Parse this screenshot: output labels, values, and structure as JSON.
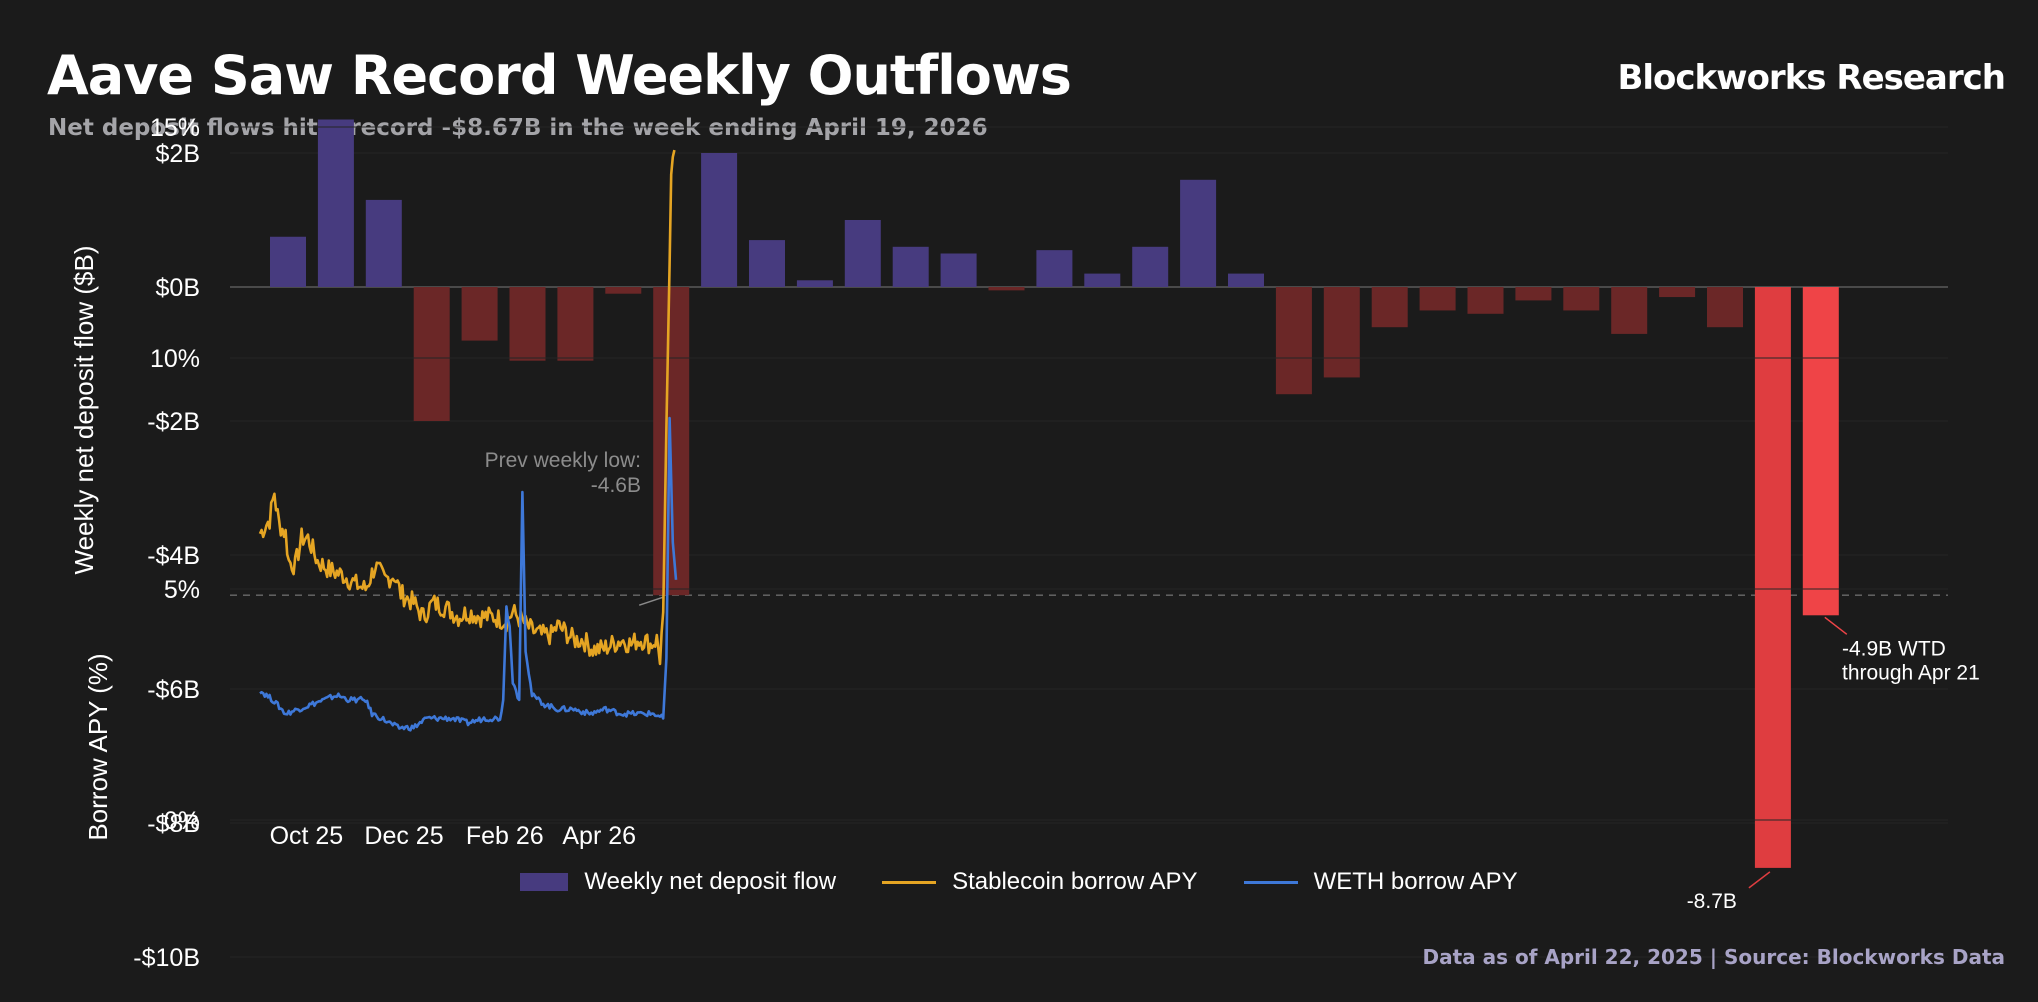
{
  "header": {
    "title": "Aave Saw Record Weekly Outflows",
    "subtitle": "Net deposit flows hit a record -$8.67B in the week ending April 19, 2026",
    "brand": "Blockworks Research"
  },
  "footer": {
    "source": "Data as of April 22, 2025 | Source: Blockworks Data"
  },
  "colors": {
    "background": "#1b1b1b",
    "positive_bar": "#473b7f",
    "negative_bar": "#6b2727",
    "record_bar": "#df3d40",
    "wtd_bar": "#ef4447",
    "stablecoin": "#e5a523",
    "weth": "#3e78d8"
  },
  "chart_data": [
    {
      "type": "bar",
      "ylabel": "Weekly net deposit flow ($B)",
      "ylim": [
        -10,
        2.5
      ],
      "yticks": [
        2,
        0,
        -2,
        -4,
        -6,
        -8,
        -10
      ],
      "ytick_labels": [
        "$2B",
        "$0B",
        "-$2B",
        "-$4B",
        "-$6B",
        "-$8B",
        "-$10B"
      ],
      "grid": true,
      "series": [
        {
          "name": "Weekly net deposit flow",
          "values": [
            0.75,
            2.5,
            1.3,
            -2.0,
            -0.8,
            -1.1,
            -1.1,
            -0.1,
            -4.6,
            2.0,
            0.7,
            0.1,
            1.0,
            0.6,
            0.5,
            -0.05,
            0.55,
            0.2,
            0.6,
            1.6,
            0.2,
            -1.6,
            -1.35,
            -0.6,
            -0.35,
            -0.4,
            -0.2,
            -0.35,
            -0.7,
            -0.15,
            -0.6,
            -8.67,
            -4.9
          ]
        }
      ],
      "reference_line": {
        "value": -4.6
      },
      "annotations": [
        {
          "text_lines": [
            "Prev weekly low:",
            "-4.6B"
          ],
          "bar_index": 8
        },
        {
          "text_lines": [
            "-8.7B"
          ],
          "bar_index": 31
        },
        {
          "text_lines": [
            "-4.9B WTD",
            "through Apr 21"
          ],
          "bar_index": 32
        }
      ]
    },
    {
      "type": "line",
      "ylabel": "Borrow APY (%)",
      "ylim": [
        0,
        16
      ],
      "yticks": [
        0,
        5,
        10,
        15
      ],
      "ytick_labels": [
        "0%",
        "5%",
        "10%",
        "15%"
      ],
      "x_range": [
        "2025-09-26",
        "2026-04-22"
      ],
      "xticks": [
        "2025-10-25",
        "2025-12-25",
        "2026-02-26",
        "2026-04-26"
      ],
      "xtick_labels": [
        "Oct 25",
        "Dec 25",
        "Feb 26",
        "Apr 26"
      ],
      "grid": true,
      "series": [
        {
          "name": "Stablecoin borrow APY",
          "points": [
            [
              0,
              6.2
            ],
            [
              6,
              6.5
            ],
            [
              9,
              7.1
            ],
            [
              10,
              6.8
            ],
            [
              12,
              6.4
            ],
            [
              16,
              6.2
            ],
            [
              18,
              5.6
            ],
            [
              22,
              5.5
            ],
            [
              26,
              6.1
            ],
            [
              30,
              6.1
            ],
            [
              36,
              5.6
            ],
            [
              44,
              5.4
            ],
            [
              52,
              5.3
            ],
            [
              60,
              5.1
            ],
            [
              66,
              5.0
            ],
            [
              72,
              5.5
            ],
            [
              78,
              5.2
            ],
            [
              84,
              5.3
            ],
            [
              88,
              4.9
            ],
            [
              96,
              4.7
            ],
            [
              102,
              4.4
            ],
            [
              108,
              4.7
            ],
            [
              116,
              4.6
            ],
            [
              124,
              4.4
            ],
            [
              130,
              4.5
            ],
            [
              138,
              4.4
            ],
            [
              146,
              4.4
            ],
            [
              154,
              4.3
            ],
            [
              158,
              4.5
            ],
            [
              164,
              4.3
            ],
            [
              170,
              4.1
            ],
            [
              176,
              4.0
            ],
            [
              182,
              4.0
            ],
            [
              186,
              4.2
            ],
            [
              190,
              4.1
            ],
            [
              196,
              3.9
            ],
            [
              202,
              3.9
            ],
            [
              208,
              3.7
            ],
            [
              214,
              3.7
            ],
            [
              220,
              3.8
            ],
            [
              226,
              3.9
            ],
            [
              232,
              3.8
            ],
            [
              236,
              3.9
            ],
            [
              240,
              3.9
            ],
            [
              244,
              3.8
            ],
            [
              248,
              3.9
            ],
            [
              250,
              3.5
            ],
            [
              252,
              4.5
            ],
            [
              254,
              8.5
            ],
            [
              257,
              13.8
            ],
            [
              259,
              14.5
            ]
          ]
        },
        {
          "name": "WETH borrow APY",
          "points": [
            [
              0,
              2.8
            ],
            [
              8,
              2.6
            ],
            [
              16,
              2.3
            ],
            [
              24,
              2.4
            ],
            [
              32,
              2.5
            ],
            [
              40,
              2.6
            ],
            [
              48,
              2.7
            ],
            [
              56,
              2.6
            ],
            [
              66,
              2.6
            ],
            [
              70,
              2.3
            ],
            [
              76,
              2.2
            ],
            [
              86,
              2.0
            ],
            [
              96,
              2.0
            ],
            [
              104,
              2.2
            ],
            [
              112,
              2.2
            ],
            [
              120,
              2.2
            ],
            [
              130,
              2.1
            ],
            [
              140,
              2.2
            ],
            [
              150,
              2.2
            ],
            [
              152,
              2.6
            ],
            [
              154,
              4.6
            ],
            [
              156,
              4.2
            ],
            [
              158,
              3.0
            ],
            [
              162,
              2.6
            ],
            [
              164,
              7.1
            ],
            [
              166,
              3.7
            ],
            [
              170,
              2.7
            ],
            [
              178,
              2.5
            ],
            [
              186,
              2.4
            ],
            [
              196,
              2.4
            ],
            [
              206,
              2.3
            ],
            [
              216,
              2.4
            ],
            [
              226,
              2.3
            ],
            [
              236,
              2.3
            ],
            [
              246,
              2.3
            ],
            [
              252,
              2.2
            ],
            [
              254,
              3.5
            ],
            [
              256,
              8.7
            ],
            [
              258,
              6.0
            ],
            [
              260,
              5.2
            ]
          ]
        }
      ]
    }
  ],
  "legend": {
    "bar_label": "Weekly net deposit flow",
    "stable_label": "Stablecoin borrow APY",
    "weth_label": "WETH borrow APY"
  }
}
